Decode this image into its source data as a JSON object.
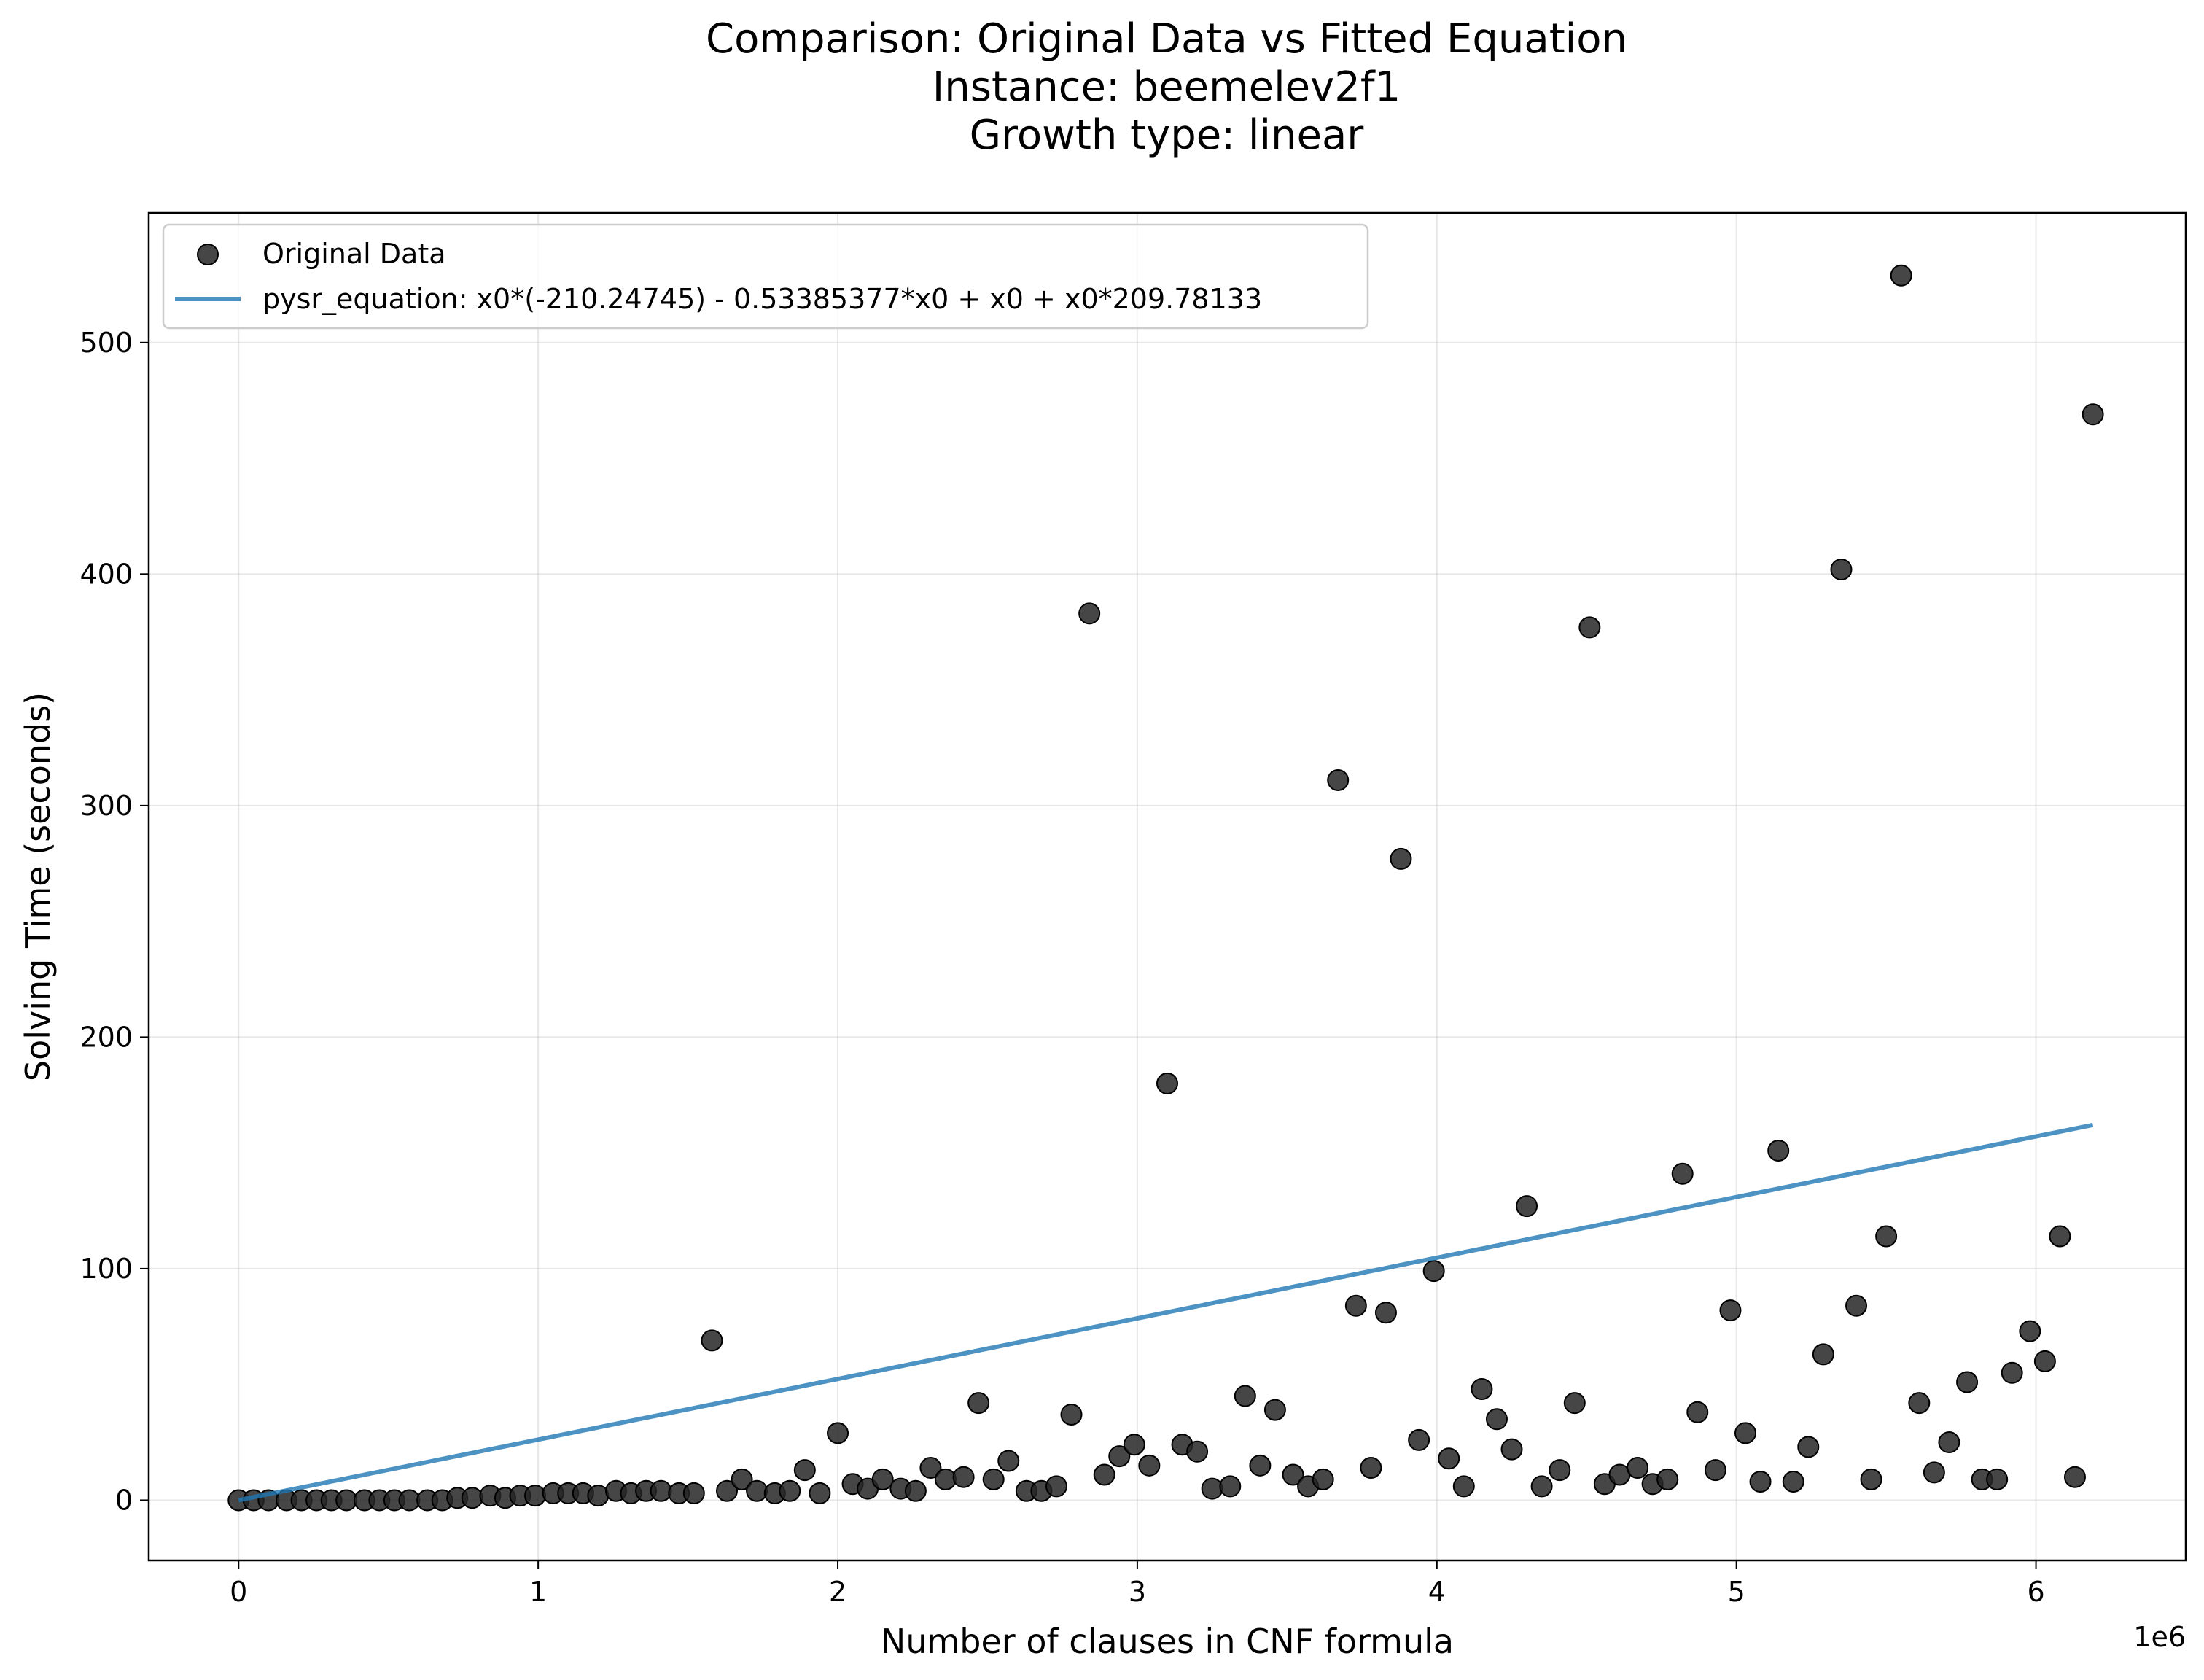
{
  "chart_data": {
    "type": "scatter",
    "title_lines": [
      "Comparison: Original Data vs Fitted Equation",
      "Instance: beemelev2f1",
      "Growth type: linear"
    ],
    "xlabel": "Number of clauses in CNF formula",
    "ylabel": "Solving Time (seconds)",
    "x_offset_label": "1e6",
    "x_scale": 1000000,
    "xlim": [
      -0.3,
      6.5
    ],
    "ylim": [
      -26,
      556
    ],
    "x_ticks": [
      0,
      1,
      2,
      3,
      4,
      5,
      6
    ],
    "x_tick_labels": [
      "0",
      "1",
      "2",
      "3",
      "4",
      "5",
      "6"
    ],
    "y_ticks": [
      0,
      100,
      200,
      300,
      400,
      500
    ],
    "y_tick_labels": [
      "0",
      "100",
      "200",
      "300",
      "400",
      "500"
    ],
    "grid": true,
    "legend_position": "top-left",
    "colors": {
      "points": "#262626",
      "line": "#1f77b4"
    },
    "series": [
      {
        "name": "Original Data",
        "kind": "scatter",
        "x": [
          0.0,
          0.05,
          0.1,
          0.16,
          0.21,
          0.26,
          0.31,
          0.36,
          0.42,
          0.47,
          0.52,
          0.57,
          0.63,
          0.68,
          0.73,
          0.78,
          0.84,
          0.89,
          0.94,
          0.99,
          1.05,
          1.1,
          1.15,
          1.2,
          1.26,
          1.31,
          1.36,
          1.41,
          1.47,
          1.52,
          1.58,
          1.63,
          1.68,
          1.73,
          1.79,
          1.84,
          1.89,
          1.94,
          2.0,
          2.05,
          2.1,
          2.15,
          2.21,
          2.26,
          2.31,
          2.36,
          2.42,
          2.47,
          2.52,
          2.57,
          2.63,
          2.68,
          2.73,
          2.78,
          2.84,
          2.89,
          2.94,
          2.99,
          3.04,
          3.1,
          3.15,
          3.2,
          3.25,
          3.31,
          3.36,
          3.41,
          3.46,
          3.52,
          3.57,
          3.62,
          3.67,
          3.73,
          3.78,
          3.83,
          3.88,
          3.94,
          3.99,
          4.04,
          4.09,
          4.15,
          4.2,
          4.25,
          4.3,
          4.35,
          4.41,
          4.46,
          4.51,
          4.56,
          4.61,
          4.67,
          4.72,
          4.77,
          4.82,
          4.87,
          4.93,
          4.98,
          5.03,
          5.08,
          5.14,
          5.19,
          5.24,
          5.29,
          5.35,
          5.4,
          5.45,
          5.5,
          5.55,
          5.61,
          5.66,
          5.71,
          5.77,
          5.82,
          5.87,
          5.92,
          5.98,
          6.03,
          6.08,
          6.13,
          6.19
        ],
        "y": [
          0,
          0,
          0,
          0,
          0,
          0,
          0,
          0,
          0,
          0,
          0,
          0,
          0,
          0,
          1,
          1,
          2,
          1,
          2,
          2,
          3,
          3,
          3,
          2,
          4,
          3,
          4,
          4,
          3,
          3,
          69,
          4,
          9,
          4,
          3,
          4,
          13,
          3,
          29,
          7,
          5,
          9,
          5,
          4,
          14,
          9,
          10,
          42,
          9,
          17,
          4,
          4,
          6,
          37,
          383,
          11,
          19,
          24,
          15,
          180,
          24,
          21,
          5,
          6,
          45,
          15,
          39,
          11,
          6,
          9,
          311,
          84,
          14,
          81,
          277,
          26,
          99,
          18,
          6,
          48,
          35,
          22,
          127,
          6,
          13,
          42,
          377,
          7,
          11,
          14,
          7,
          9,
          141,
          38,
          13,
          82,
          29,
          8,
          151,
          8,
          23,
          63,
          402,
          84,
          9,
          114,
          529,
          42,
          12,
          25,
          51,
          9,
          9,
          55,
          73,
          60,
          114,
          10,
          469
        ]
      },
      {
        "name": "pysr_equation: x0*(-210.24745) - 0.53385377*x0 + x0 + x0*209.78133",
        "kind": "line",
        "slope_per_unit": 2.6183e-05,
        "x_range": [
          0,
          6.19
        ]
      }
    ]
  }
}
